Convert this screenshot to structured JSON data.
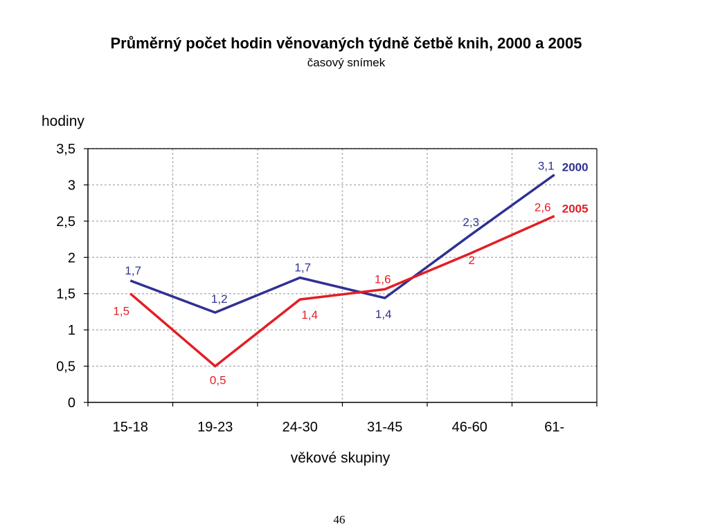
{
  "title": "Průměrný počet hodin věnovaných týdně četbě knih, 2000 a 2005",
  "subtitle": "časový snímek",
  "page_number": "46",
  "chart_data": {
    "type": "line",
    "title": "Průměrný počet hodin věnovaných týdně četbě knih, 2000 a 2005",
    "subtitle": "časový snímek",
    "xlabel": "věkové skupiny",
    "ylabel": "hodiny",
    "categories": [
      "15-18",
      "19-23",
      "24-30",
      "31-45",
      "46-60",
      "61-"
    ],
    "ylim": [
      0,
      3.5
    ],
    "yticks": [
      0,
      0.5,
      1,
      1.5,
      2,
      2.5,
      3,
      3.5
    ],
    "ytick_labels": [
      "0",
      "0,5",
      "1",
      "1,5",
      "2",
      "2,5",
      "3",
      "3,5"
    ],
    "grid": true,
    "series": [
      {
        "name": "2000",
        "color": "#2E3192",
        "values": [
          1.68,
          1.24,
          1.72,
          1.44,
          2.3,
          3.14
        ],
        "labels": [
          "1,7",
          "1,2",
          "1,7",
          "1,4",
          "2,3",
          "3,1"
        ]
      },
      {
        "name": "2005",
        "color": "#E31E24",
        "values": [
          1.5,
          0.5,
          1.42,
          1.56,
          2.05,
          2.57
        ],
        "labels": [
          "1,5",
          "0,5",
          "1,4",
          "1,6",
          "2",
          "2,6"
        ]
      }
    ]
  }
}
